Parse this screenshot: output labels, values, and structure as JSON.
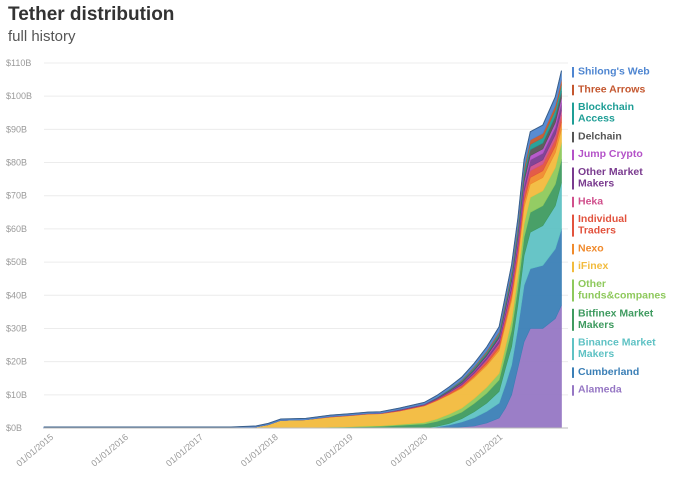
{
  "header": {
    "title": "Tether distribution",
    "subtitle": "full history"
  },
  "chart_data": {
    "type": "area",
    "stacked": true,
    "title": "Tether distribution",
    "subtitle": "full history",
    "xlabel": "",
    "ylabel": "",
    "ylim": [
      0,
      110
    ],
    "y_unit": "B",
    "y_ticks": [
      "$0B",
      "$10B",
      "$20B",
      "$30B",
      "$40B",
      "$50B",
      "$60B",
      "$70B",
      "$80B",
      "$90B",
      "$100B",
      "$110B"
    ],
    "x_ticks": [
      "01/01/2015",
      "01/01/2016",
      "01/01/2017",
      "01/01/2018",
      "01/01/2019",
      "01/01/2020",
      "01/01/2021"
    ],
    "grid": true,
    "legend_position": "right",
    "x": [
      "2014-12",
      "2015-06",
      "2016-01",
      "2016-06",
      "2017-01",
      "2017-06",
      "2017-10",
      "2017-12",
      "2018-02",
      "2018-06",
      "2018-10",
      "2019-01",
      "2019-04",
      "2019-06",
      "2019-09",
      "2020-01",
      "2020-03",
      "2020-05",
      "2020-07",
      "2020-09",
      "2020-11",
      "2021-01",
      "2021-02",
      "2021-03",
      "2021-04",
      "2021-05",
      "2021-06",
      "2021-08",
      "2021-10",
      "2021-11"
    ],
    "series": [
      {
        "name": "Alameda",
        "color": "#9677c4",
        "values": [
          0,
          0,
          0,
          0,
          0,
          0,
          0,
          0,
          0,
          0,
          0,
          0,
          0,
          0,
          0,
          0,
          0,
          0.1,
          0.3,
          0.6,
          1.5,
          3,
          6,
          10,
          18,
          26,
          30,
          30,
          33,
          37
        ]
      },
      {
        "name": "Cumberland",
        "color": "#3b7fb6",
        "values": [
          0,
          0,
          0,
          0,
          0,
          0,
          0,
          0,
          0,
          0,
          0,
          0,
          0,
          0,
          0,
          0,
          0.3,
          0.8,
          1.5,
          2.5,
          3.5,
          4.5,
          7,
          9,
          12,
          17,
          18,
          19,
          21,
          23
        ]
      },
      {
        "name": "Binance Market Makers",
        "color": "#5fc2c4",
        "values": [
          0,
          0,
          0,
          0,
          0,
          0,
          0,
          0,
          0,
          0,
          0,
          0,
          0,
          0,
          0,
          0,
          0.2,
          0.5,
          1,
          1.8,
          2.5,
          3.5,
          5,
          5.5,
          7,
          9,
          11,
          12,
          13,
          14
        ]
      },
      {
        "name": "Bitfinex Market Makers",
        "color": "#3f9b60",
        "values": [
          0,
          0,
          0,
          0,
          0,
          0,
          0,
          0,
          0,
          0,
          0.2,
          0.3,
          0.4,
          0.5,
          0.8,
          1.2,
          1.5,
          1.8,
          2,
          2.5,
          3,
          3.5,
          4,
          5,
          5,
          5.5,
          6,
          6,
          6.5,
          7
        ]
      },
      {
        "name": "Other funds&companes",
        "color": "#8ec95c",
        "values": [
          0,
          0,
          0,
          0,
          0,
          0,
          0,
          0,
          0,
          0,
          0.1,
          0.1,
          0.2,
          0.2,
          0.3,
          0.5,
          0.7,
          1,
          1.2,
          1.5,
          1.8,
          2,
          2.5,
          3,
          3.5,
          4,
          4.5,
          4.5,
          5,
          5
        ]
      },
      {
        "name": "iFinex",
        "color": "#f2bb3d",
        "values": [
          0,
          0,
          0,
          0,
          0,
          0,
          0.3,
          1,
          2.3,
          2.5,
          3,
          3.3,
          3.6,
          3.6,
          4,
          5,
          5.5,
          5.8,
          6,
          6.3,
          6.5,
          6.8,
          6.5,
          6,
          5,
          5,
          4,
          4,
          4.5,
          4
        ]
      },
      {
        "name": "Nexo",
        "color": "#f08a2c",
        "values": [
          0,
          0,
          0,
          0,
          0,
          0,
          0,
          0,
          0,
          0,
          0,
          0,
          0,
          0,
          0,
          0,
          0.1,
          0.2,
          0.3,
          0.4,
          0.6,
          0.8,
          1,
          1.2,
          1.5,
          1.8,
          2,
          2,
          2,
          2.2
        ]
      },
      {
        "name": "Individual Traders",
        "color": "#e2533e",
        "values": [
          0,
          0,
          0,
          0,
          0,
          0,
          0,
          0,
          0,
          0,
          0.1,
          0.1,
          0.1,
          0.1,
          0.2,
          0.2,
          0.3,
          0.4,
          0.5,
          0.6,
          0.8,
          1,
          1.2,
          1.4,
          1.6,
          1.8,
          2,
          2,
          2,
          2
        ]
      },
      {
        "name": "Heka",
        "color": "#d0508c",
        "values": [
          0,
          0,
          0,
          0,
          0,
          0,
          0,
          0,
          0,
          0,
          0,
          0,
          0,
          0,
          0,
          0,
          0,
          0.1,
          0.2,
          0.3,
          0.4,
          0.5,
          0.7,
          0.9,
          1,
          1.2,
          1.3,
          1.3,
          1.4,
          1.5
        ]
      },
      {
        "name": "Other Market Makers",
        "color": "#7a3b8f",
        "values": [
          0,
          0,
          0,
          0,
          0,
          0,
          0,
          0,
          0,
          0,
          0.1,
          0.1,
          0.1,
          0.1,
          0.2,
          0.2,
          0.3,
          0.4,
          0.5,
          0.6,
          0.8,
          1,
          1.2,
          1.4,
          1.6,
          1.8,
          2,
          2,
          2.2,
          2.3
        ]
      },
      {
        "name": "Jump Crypto",
        "color": "#b452c8",
        "values": [
          0,
          0,
          0,
          0,
          0,
          0,
          0,
          0,
          0,
          0,
          0,
          0,
          0,
          0,
          0,
          0,
          0,
          0,
          0.1,
          0.2,
          0.3,
          0.5,
          0.6,
          0.8,
          1,
          1.2,
          1.3,
          1.3,
          1.4,
          1.5
        ]
      },
      {
        "name": "Delchain",
        "color": "#555555",
        "values": [
          0,
          0,
          0,
          0,
          0,
          0,
          0,
          0,
          0,
          0,
          0,
          0,
          0,
          0,
          0.1,
          0.1,
          0.2,
          0.3,
          0.4,
          0.5,
          0.6,
          0.8,
          1,
          1.2,
          1.4,
          1.6,
          1.8,
          1.8,
          2,
          2
        ]
      },
      {
        "name": "Blockchain Access",
        "color": "#1f9e96",
        "values": [
          0,
          0,
          0,
          0,
          0,
          0,
          0,
          0,
          0,
          0,
          0,
          0,
          0,
          0,
          0,
          0,
          0.1,
          0.2,
          0.3,
          0.4,
          0.5,
          0.6,
          0.8,
          1,
          1.2,
          1.4,
          1.6,
          1.6,
          1.8,
          2
        ]
      },
      {
        "name": "Three Arrows",
        "color": "#c4572f",
        "values": [
          0,
          0,
          0,
          0,
          0,
          0,
          0,
          0,
          0,
          0,
          0,
          0,
          0,
          0,
          0,
          0,
          0,
          0.1,
          0.2,
          0.3,
          0.4,
          0.5,
          0.6,
          0.8,
          1,
          1.2,
          1.3,
          1.3,
          1.4,
          1.5
        ]
      },
      {
        "name": "Shilong's Web",
        "color": "#4f86d1",
        "values": [
          0.3,
          0.3,
          0.3,
          0.3,
          0.3,
          0.3,
          0.3,
          0.4,
          0.4,
          0.4,
          0.4,
          0.4,
          0.4,
          0.4,
          0.4,
          0.5,
          0.6,
          0.7,
          0.8,
          1,
          1.2,
          1.5,
          1.8,
          2,
          2.2,
          2.4,
          2.5,
          2.5,
          2.6,
          2.7
        ]
      }
    ]
  }
}
